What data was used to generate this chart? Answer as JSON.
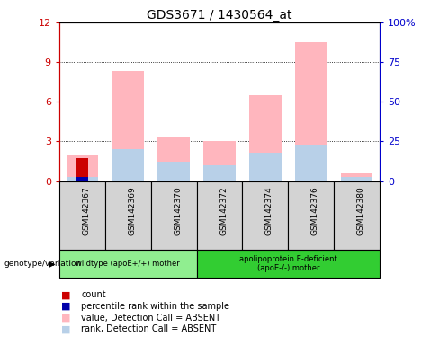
{
  "title": "GDS3671 / 1430564_at",
  "samples": [
    "GSM142367",
    "GSM142369",
    "GSM142370",
    "GSM142372",
    "GSM142374",
    "GSM142376",
    "GSM142380"
  ],
  "pink_bars": [
    2.0,
    8.3,
    3.3,
    3.0,
    6.5,
    10.5,
    0.6
  ],
  "blue_rank_bars": [
    0.28,
    2.45,
    1.45,
    1.2,
    2.15,
    2.75,
    0.28
  ],
  "red_count_bars": [
    1.75,
    0,
    0,
    0,
    0,
    0,
    0
  ],
  "blue_pct_bars": [
    0.28,
    0,
    0,
    0,
    0,
    0,
    0
  ],
  "ylim_left": [
    0,
    12
  ],
  "ylim_right": [
    0,
    100
  ],
  "yticks_left": [
    0,
    3,
    6,
    9,
    12
  ],
  "ytick_labels_left": [
    "0",
    "3",
    "6",
    "9",
    "12"
  ],
  "yticks_right_vals": [
    0,
    25,
    50,
    75,
    100
  ],
  "ytick_labels_right": [
    "0",
    "25",
    "50",
    "75",
    "100%"
  ],
  "group1_count": 3,
  "group2_count": 4,
  "group1_label": "wildtype (apoE+/+) mother",
  "group2_label": "apolipoprotein E-deficient\n(apoE-/-) mother",
  "genotype_label": "genotype/variation",
  "color_pink": "#FFB6BE",
  "color_lightblue": "#B8D0E8",
  "color_red": "#CC0000",
  "color_blue": "#0000AA",
  "color_left_axis": "#CC0000",
  "color_right_axis": "#0000CC",
  "color_group1_bg": "#90EE90",
  "color_group2_bg": "#32CD32",
  "color_sample_bg": "#D3D3D3",
  "legend_items": [
    {
      "label": "count",
      "color": "#CC0000"
    },
    {
      "label": "percentile rank within the sample",
      "color": "#0000AA"
    },
    {
      "label": "value, Detection Call = ABSENT",
      "color": "#FFB6BE"
    },
    {
      "label": "rank, Detection Call = ABSENT",
      "color": "#B8D0E8"
    }
  ]
}
